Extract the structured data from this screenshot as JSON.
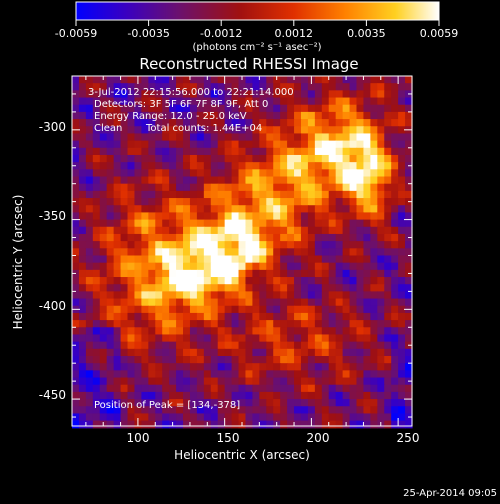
{
  "colorbar": {
    "ticks": [
      "-0.0059",
      "-0.0035",
      "-0.0012",
      "0.0012",
      "0.0035",
      "0.0059"
    ],
    "range": [
      -0.0059,
      0.0059
    ],
    "unit_label": "(photons cm⁻² s⁻¹ asec⁻²)",
    "colormap": [
      "#0000ff",
      "#3a00c0",
      "#6a1070",
      "#a01010",
      "#e03000",
      "#ff8000",
      "#ffd020",
      "#ffffff"
    ]
  },
  "chart_data": {
    "type": "heatmap",
    "title": "Reconstructed RHESSI Image",
    "xlabel": "Heliocentric X (arcsec)",
    "ylabel": "Heliocentric Y (arcsec)",
    "xlim": [
      62,
      258
    ],
    "ylim": [
      -465,
      -270
    ],
    "xticks": [
      100,
      150,
      200,
      250
    ],
    "yticks": [
      -300,
      -350,
      -400,
      -450
    ],
    "peak": [
      134,
      -378
    ],
    "sources": [
      {
        "x": 145,
        "y": -375,
        "amp": 1.0,
        "sx": 17,
        "sy": 9,
        "rot": 28
      },
      {
        "x": 167,
        "y": -347,
        "amp": 0.72,
        "sx": 55,
        "sy": 20,
        "rot": 42
      },
      {
        "x": 232,
        "y": -325,
        "amp": 0.82,
        "sx": 10,
        "sy": 17,
        "rot": 10
      },
      {
        "x": 105,
        "y": -370,
        "amp": 0.45,
        "sx": 22,
        "sy": 28,
        "rot": 0
      },
      {
        "x": 190,
        "y": -418,
        "amp": 0.35,
        "sx": 30,
        "sy": 18,
        "rot": 0
      },
      {
        "x": 210,
        "y": -310,
        "amp": 0.35,
        "sx": 18,
        "sy": 18,
        "rot": 0
      }
    ],
    "annotations": {
      "time": "3-Jul-2012 22:15:56.000 to 22:21:14.000",
      "detectors": "Detectors: 3F 5F 6F 7F 8F 9F, Att 0",
      "energy": "Energy Range: 12.0 - 25.0 keV",
      "method": "Clean",
      "counts": "Total counts: 1.44E+04",
      "peak": "Position of Peak = [134,-378]"
    }
  },
  "footer": {
    "date": "25-Apr-2014 09:05"
  }
}
